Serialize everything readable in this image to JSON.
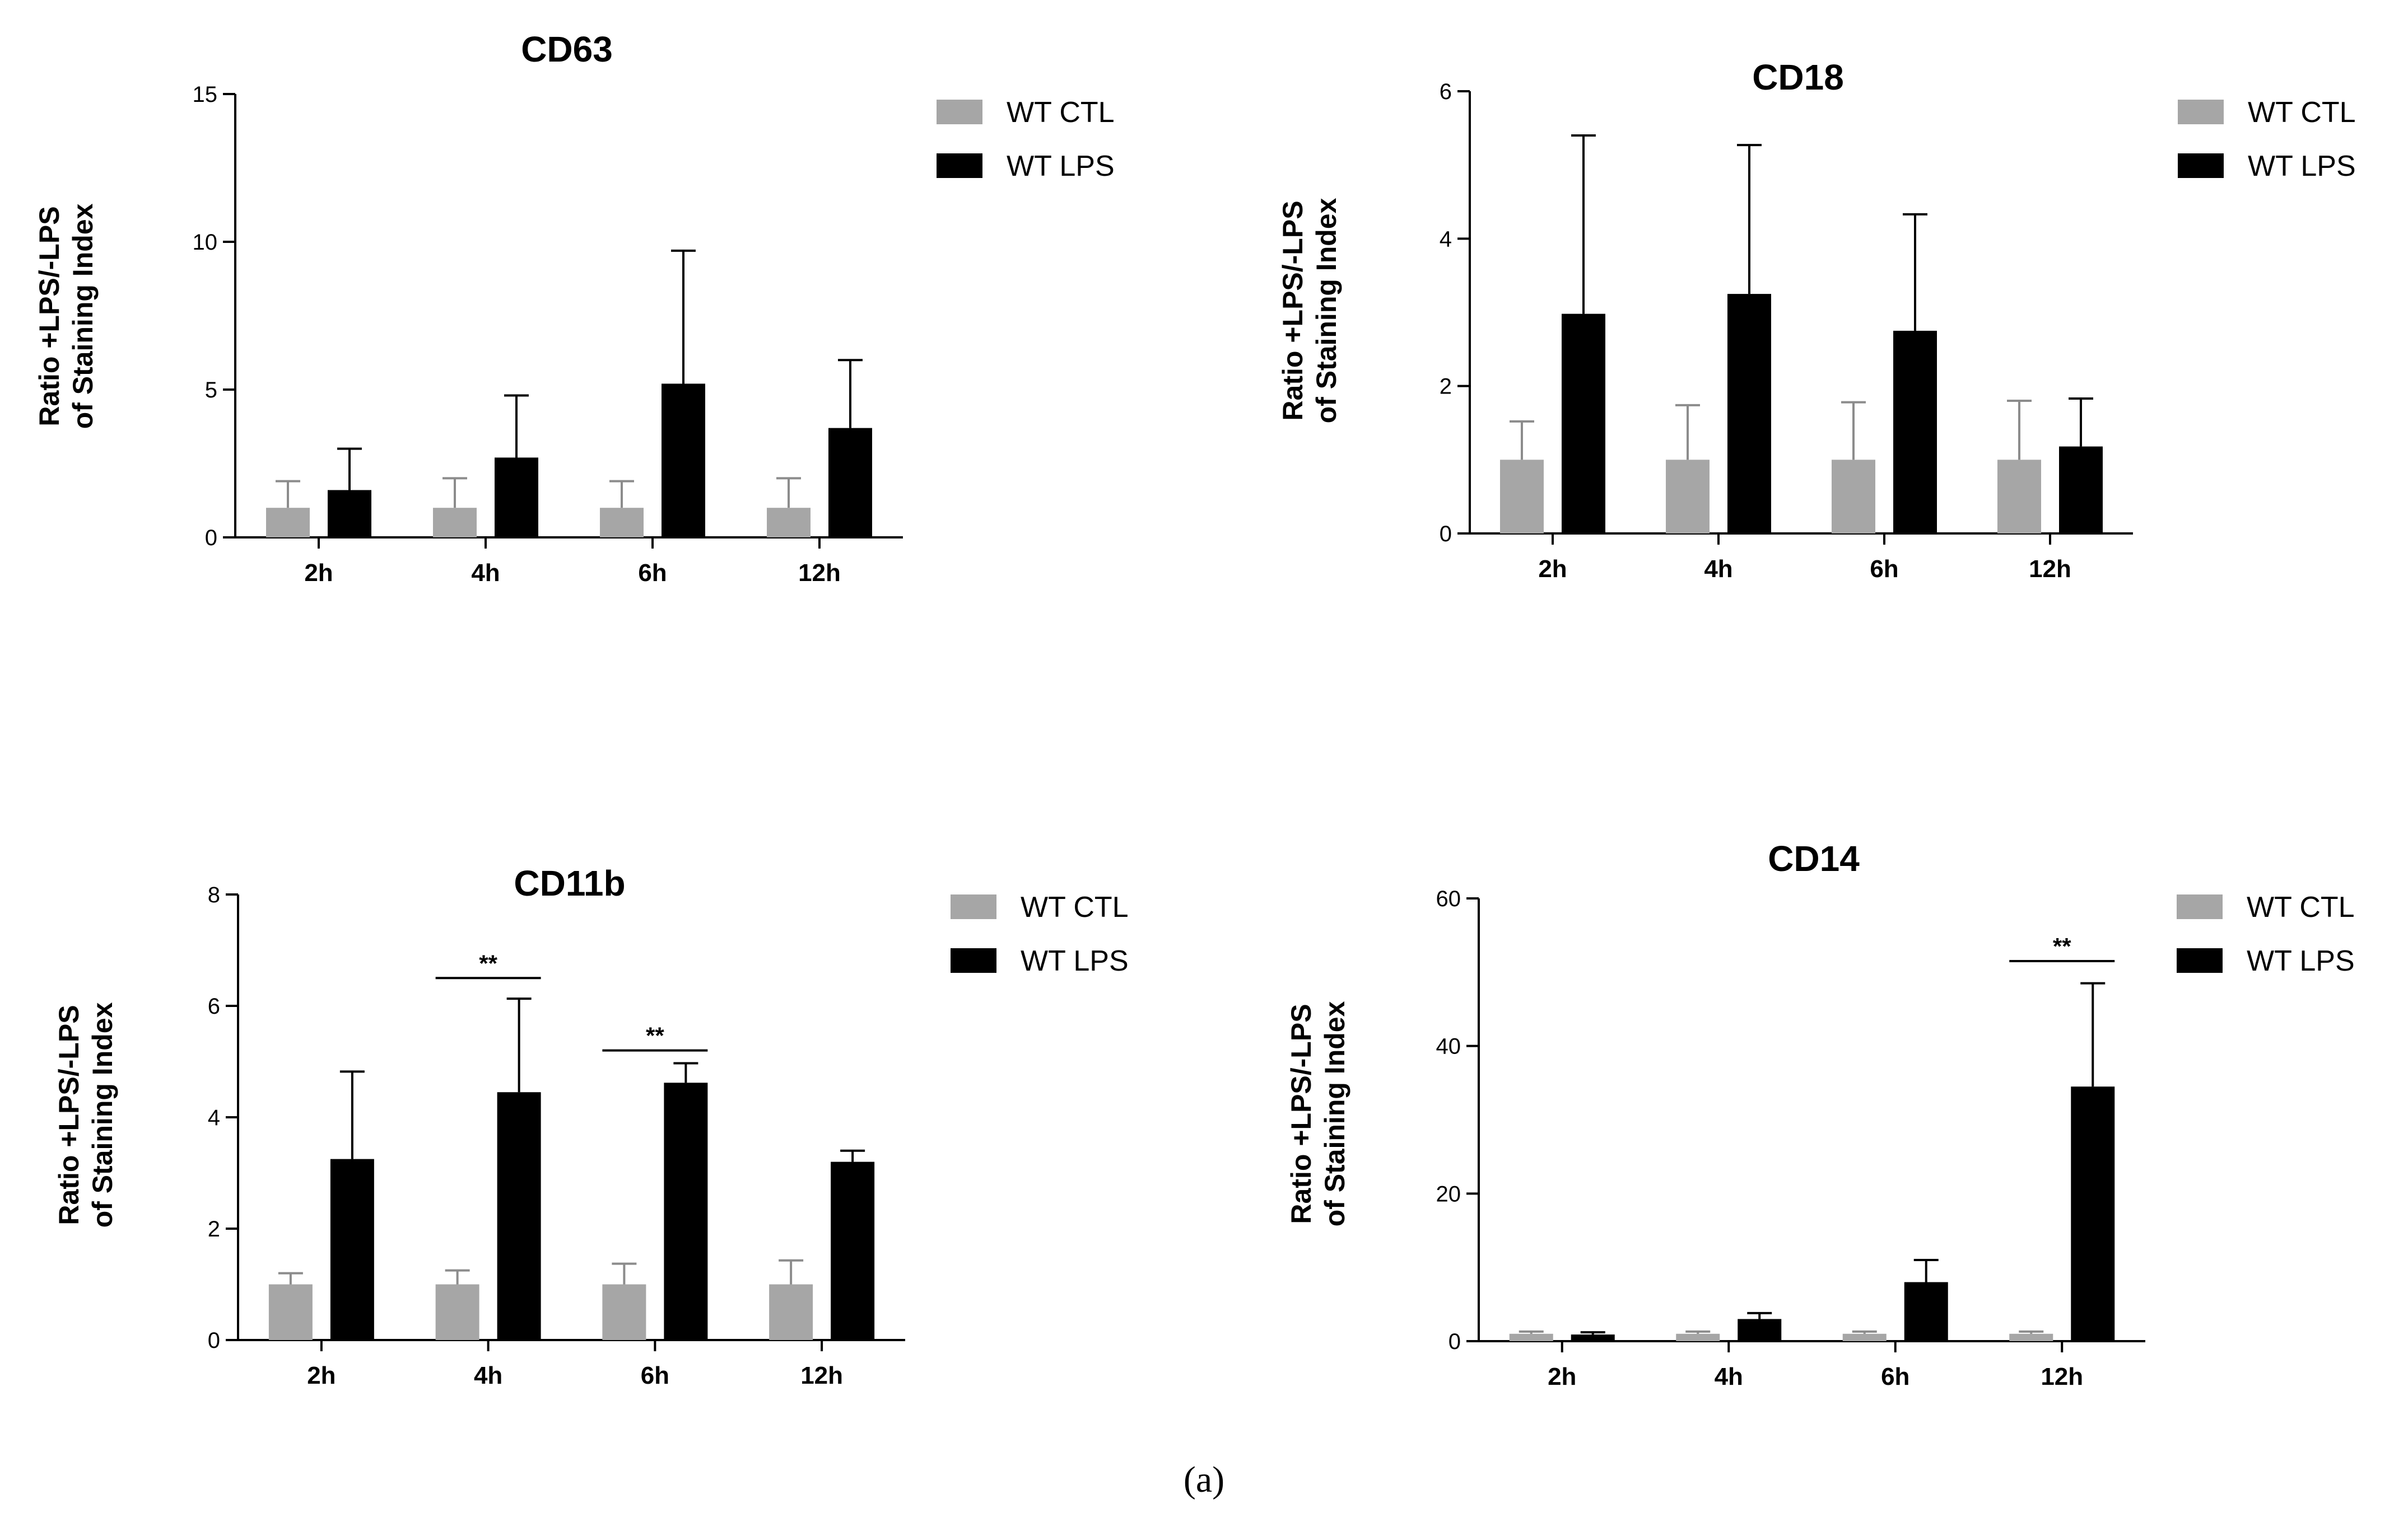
{
  "figure": {
    "caption": "(a)"
  },
  "chart_data": [
    {
      "type": "bar",
      "title": "CD63",
      "categories": [
        "2h",
        "4h",
        "6h",
        "12h"
      ],
      "ylabel": [
        "Ratio +LPS/-LPS",
        "of Staining Index"
      ],
      "ylim": [
        0,
        15
      ],
      "yticks": [
        0,
        5,
        10,
        15
      ],
      "series": [
        {
          "name": "WT CTL",
          "color": "#a6a6a6",
          "values": [
            1.0,
            1.0,
            1.0,
            1.0
          ],
          "errors": [
            0.9,
            1.0,
            0.9,
            1.0
          ]
        },
        {
          "name": "WT LPS",
          "color": "#000000",
          "values": [
            1.6,
            2.7,
            5.2,
            3.7
          ],
          "errors": [
            1.4,
            2.1,
            4.5,
            2.3
          ]
        }
      ],
      "significance": [],
      "legend": "top-right"
    },
    {
      "type": "bar",
      "title": "CD18",
      "categories": [
        "2h",
        "4h",
        "6h",
        "12h"
      ],
      "ylabel": [
        "Ratio +LPS/-LPS",
        "of Staining Index"
      ],
      "ylim": [
        0,
        6
      ],
      "yticks": [
        0,
        2,
        4,
        6
      ],
      "series": [
        {
          "name": "WT CTL",
          "color": "#a6a6a6",
          "values": [
            1.0,
            1.0,
            1.0,
            1.0
          ],
          "errors": [
            0.52,
            0.74,
            0.78,
            0.8
          ]
        },
        {
          "name": "WT LPS",
          "color": "#000000",
          "values": [
            2.98,
            3.25,
            2.75,
            1.18
          ],
          "errors": [
            2.42,
            2.02,
            1.58,
            0.65
          ]
        }
      ],
      "significance": [],
      "legend": "top-right"
    },
    {
      "type": "bar",
      "title": "CD11b",
      "categories": [
        "2h",
        "4h",
        "6h",
        "12h"
      ],
      "ylabel": [
        "Ratio +LPS/-LPS",
        "of Staining Index"
      ],
      "ylim": [
        0,
        8
      ],
      "yticks": [
        0,
        2,
        4,
        6,
        8
      ],
      "series": [
        {
          "name": "WT CTL",
          "color": "#a6a6a6",
          "values": [
            1.0,
            1.0,
            1.0,
            1.0
          ],
          "errors": [
            0.2,
            0.25,
            0.37,
            0.43
          ]
        },
        {
          "name": "WT LPS",
          "color": "#000000",
          "values": [
            3.25,
            4.45,
            4.62,
            3.2
          ],
          "errors": [
            1.57,
            1.68,
            0.35,
            0.2
          ]
        }
      ],
      "significance": [
        {
          "category": "4h",
          "label": "**",
          "y": 6.5
        },
        {
          "category": "6h",
          "label": "**",
          "y": 5.2
        }
      ],
      "legend": "top-right"
    },
    {
      "type": "bar",
      "title": "CD14",
      "categories": [
        "2h",
        "4h",
        "6h",
        "12h"
      ],
      "ylabel": [
        "Ratio +LPS/-LPS",
        "of Staining Index"
      ],
      "ylim": [
        0,
        60
      ],
      "yticks": [
        0,
        20,
        40,
        60
      ],
      "series": [
        {
          "name": "WT CTL",
          "color": "#a6a6a6",
          "values": [
            1.0,
            1.0,
            1.0,
            1.0
          ],
          "errors": [
            0.3,
            0.3,
            0.3,
            0.3
          ]
        },
        {
          "name": "WT LPS",
          "color": "#000000",
          "values": [
            0.9,
            3.0,
            8.0,
            34.5
          ],
          "errors": [
            0.3,
            0.8,
            3.0,
            14.0
          ]
        }
      ],
      "significance": [
        {
          "category": "12h",
          "label": "**",
          "y": 51.5
        }
      ],
      "legend": "top-right"
    }
  ]
}
